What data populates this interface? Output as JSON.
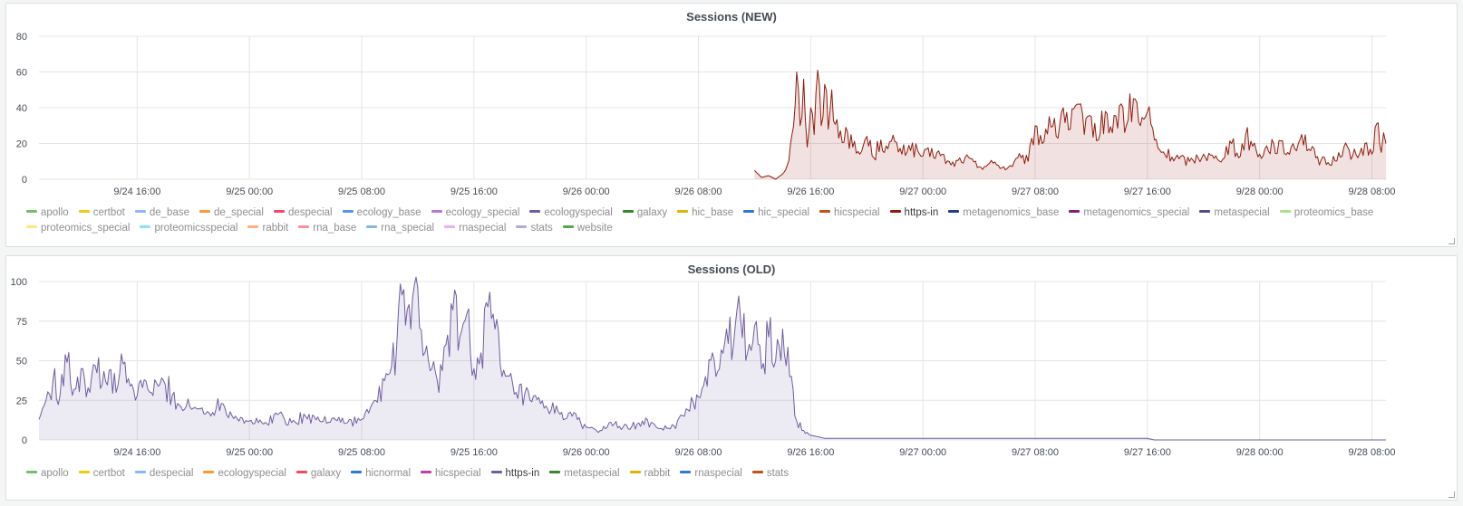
{
  "panels": [
    {
      "title": "Sessions (NEW)",
      "color": "#8f1b0c",
      "legend": [
        {
          "name": "apollo",
          "color": "#73bf69"
        },
        {
          "name": "certbot",
          "color": "#f2cc0c"
        },
        {
          "name": "de_base",
          "color": "#8ab8ff"
        },
        {
          "name": "de_special",
          "color": "#ff9830"
        },
        {
          "name": "despecial",
          "color": "#f2495c"
        },
        {
          "name": "ecology_base",
          "color": "#5794f2"
        },
        {
          "name": "ecology_special",
          "color": "#b877d9"
        },
        {
          "name": "ecologyspecial",
          "color": "#705da0"
        },
        {
          "name": "galaxy",
          "color": "#37872d"
        },
        {
          "name": "hic_base",
          "color": "#e0b400"
        },
        {
          "name": "hic_special",
          "color": "#3274d9"
        },
        {
          "name": "hicspecial",
          "color": "#c4501b"
        },
        {
          "name": "https-in",
          "color": "#8f1b0c",
          "active": true
        },
        {
          "name": "metagenomics_base",
          "color": "#1f3d8a"
        },
        {
          "name": "metagenomics_special",
          "color": "#7c1f7a"
        },
        {
          "name": "metaspecial",
          "color": "#5b4a8b"
        },
        {
          "name": "proteomics_base",
          "color": "#a7e091"
        },
        {
          "name": "proteomics_special",
          "color": "#ffe680"
        },
        {
          "name": "proteomicsspecial",
          "color": "#8be2f2"
        },
        {
          "name": "rabbit",
          "color": "#ffb07a"
        },
        {
          "name": "rna_base",
          "color": "#ff8e9b"
        },
        {
          "name": "rna_special",
          "color": "#8ab8d8"
        },
        {
          "name": "rnaspecial",
          "color": "#e3b3f0"
        },
        {
          "name": "stats",
          "color": "#b6a8d9"
        },
        {
          "name": "website",
          "color": "#56a64b"
        }
      ]
    },
    {
      "title": "Sessions (OLD)",
      "color": "#705da0",
      "legend": [
        {
          "name": "apollo",
          "color": "#73bf69"
        },
        {
          "name": "certbot",
          "color": "#f2cc0c"
        },
        {
          "name": "despecial",
          "color": "#8ab8ff"
        },
        {
          "name": "ecologyspecial",
          "color": "#ff9830"
        },
        {
          "name": "galaxy",
          "color": "#f2495c"
        },
        {
          "name": "hicnormal",
          "color": "#3274d9"
        },
        {
          "name": "hicspecial",
          "color": "#c13da8"
        },
        {
          "name": "https-in",
          "color": "#705da0",
          "active": true
        },
        {
          "name": "metaspecial",
          "color": "#37872d"
        },
        {
          "name": "rabbit",
          "color": "#e0b400"
        },
        {
          "name": "rnaspecial",
          "color": "#3274d9"
        },
        {
          "name": "stats",
          "color": "#c4501b"
        }
      ]
    }
  ],
  "chart_data": [
    {
      "type": "area",
      "title": "Sessions (NEW)",
      "x_ticks": [
        "9/24 16:00",
        "9/25 00:00",
        "9/25 08:00",
        "9/25 16:00",
        "9/26 00:00",
        "9/26 08:00",
        "9/26 16:00",
        "9/27 00:00",
        "9/27 08:00",
        "9/27 16:00",
        "9/28 00:00",
        "9/28 08:00"
      ],
      "y_ticks": [
        0,
        20,
        40,
        60,
        80
      ],
      "ylim": [
        0,
        80
      ],
      "xlim": [
        "9/24 09:00",
        "9/28 09:00"
      ],
      "series": [
        {
          "name": "https-in",
          "color": "#8f1b0c",
          "points": [
            [
              "9/26 12:00",
              5
            ],
            [
              "9/26 12:30",
              1
            ],
            [
              "9/26 13:00",
              2
            ],
            [
              "9/26 13:30",
              0
            ],
            [
              "9/26 14:00",
              3
            ],
            [
              "9/26 14:20",
              8
            ],
            [
              "9/26 14:40",
              25
            ],
            [
              "9/26 15:00",
              60
            ],
            [
              "9/26 15:15",
              30
            ],
            [
              "9/26 15:30",
              56
            ],
            [
              "9/26 15:45",
              18
            ],
            [
              "9/26 16:00",
              40
            ],
            [
              "9/26 16:15",
              25
            ],
            [
              "9/26 16:30",
              61
            ],
            [
              "9/26 16:45",
              30
            ],
            [
              "9/26 17:00",
              53
            ],
            [
              "9/26 17:15",
              28
            ],
            [
              "9/26 17:30",
              50
            ],
            [
              "9/26 18:00",
              23
            ],
            [
              "9/26 18:30",
              29
            ],
            [
              "9/26 19:00",
              18
            ],
            [
              "9/26 19:30",
              14
            ],
            [
              "9/26 20:00",
              24
            ],
            [
              "9/26 20:30",
              12
            ],
            [
              "9/26 21:00",
              22
            ],
            [
              "9/26 21:30",
              17
            ],
            [
              "9/26 22:00",
              21
            ],
            [
              "9/26 22:30",
              14
            ],
            [
              "9/26 23:00",
              19
            ],
            [
              "9/27 00:00",
              13
            ],
            [
              "9/27 01:00",
              15
            ],
            [
              "9/27 02:00",
              8
            ],
            [
              "9/27 03:00",
              12
            ],
            [
              "9/27 04:00",
              7
            ],
            [
              "9/27 05:00",
              9
            ],
            [
              "9/27 06:00",
              6
            ],
            [
              "9/27 07:00",
              12
            ],
            [
              "9/27 07:30",
              10
            ],
            [
              "9/27 08:00",
              30
            ],
            [
              "9/27 08:30",
              20
            ],
            [
              "9/27 09:00",
              35
            ],
            [
              "9/27 09:30",
              24
            ],
            [
              "9/27 10:00",
              40
            ],
            [
              "9/27 10:30",
              28
            ],
            [
              "9/27 11:00",
              42
            ],
            [
              "9/27 11:30",
              25
            ],
            [
              "9/27 12:00",
              35
            ],
            [
              "9/27 12:30",
              22
            ],
            [
              "9/27 13:00",
              38
            ],
            [
              "9/27 13:30",
              26
            ],
            [
              "9/27 14:00",
              41
            ],
            [
              "9/27 14:30",
              30
            ],
            [
              "9/27 15:00",
              45
            ],
            [
              "9/27 15:30",
              30
            ],
            [
              "9/27 16:00",
              38
            ],
            [
              "9/27 16:30",
              22
            ],
            [
              "9/27 17:00",
              15
            ],
            [
              "9/27 18:00",
              12
            ],
            [
              "9/27 19:00",
              10
            ],
            [
              "9/27 20:00",
              14
            ],
            [
              "9/27 21:00",
              11
            ],
            [
              "9/27 22:00",
              20
            ],
            [
              "9/27 22:30",
              12
            ],
            [
              "9/27 23:00",
              25
            ],
            [
              "9/28 00:00",
              14
            ],
            [
              "9/28 01:00",
              20
            ],
            [
              "9/28 02:00",
              15
            ],
            [
              "9/28 03:00",
              25
            ],
            [
              "9/28 04:00",
              12
            ],
            [
              "9/28 05:00",
              8
            ],
            [
              "9/28 06:00",
              18
            ],
            [
              "9/28 07:00",
              12
            ],
            [
              "9/28 07:30",
              20
            ],
            [
              "9/28 08:00",
              14
            ],
            [
              "9/28 08:20",
              31
            ],
            [
              "9/28 08:40",
              15
            ],
            [
              "9/28 08:50",
              26
            ],
            [
              "9/28 09:00",
              20
            ]
          ]
        }
      ]
    },
    {
      "type": "area",
      "title": "Sessions (OLD)",
      "x_ticks": [
        "9/24 16:00",
        "9/25 00:00",
        "9/25 08:00",
        "9/25 16:00",
        "9/26 00:00",
        "9/26 08:00",
        "9/26 16:00",
        "9/27 00:00",
        "9/27 08:00",
        "9/27 16:00",
        "9/28 00:00",
        "9/28 08:00"
      ],
      "y_ticks": [
        0,
        25,
        50,
        75,
        100
      ],
      "ylim": [
        0,
        100
      ],
      "xlim": [
        "9/24 09:00",
        "9/28 09:00"
      ],
      "series": [
        {
          "name": "https-in",
          "color": "#705da0",
          "points": [
            [
              "9/24 09:00",
              13
            ],
            [
              "9/24 09:30",
              25
            ],
            [
              "9/24 10:00",
              38
            ],
            [
              "9/24 10:30",
              28
            ],
            [
              "9/24 11:00",
              49
            ],
            [
              "9/24 11:30",
              32
            ],
            [
              "9/24 12:00",
              45
            ],
            [
              "9/24 12:30",
              33
            ],
            [
              "9/24 13:00",
              47
            ],
            [
              "9/24 13:30",
              35
            ],
            [
              "9/24 14:00",
              44
            ],
            [
              "9/24 14:30",
              30
            ],
            [
              "9/24 15:00",
              48
            ],
            [
              "9/24 15:30",
              34
            ],
            [
              "9/24 16:00",
              28
            ],
            [
              "9/24 16:30",
              38
            ],
            [
              "9/24 17:00",
              30
            ],
            [
              "9/24 18:00",
              35
            ],
            [
              "9/24 19:00",
              22
            ],
            [
              "9/24 20:00",
              20
            ],
            [
              "9/24 21:00",
              18
            ],
            [
              "9/24 22:00",
              23
            ],
            [
              "9/24 23:00",
              15
            ],
            [
              "9/25 00:00",
              12
            ],
            [
              "9/25 01:00",
              10
            ],
            [
              "9/25 02:00",
              16
            ],
            [
              "9/25 03:00",
              11
            ],
            [
              "9/25 04:00",
              15
            ],
            [
              "9/25 05:00",
              12
            ],
            [
              "9/25 06:00",
              14
            ],
            [
              "9/25 07:00",
              11
            ],
            [
              "9/25 08:00",
              13
            ],
            [
              "9/25 08:30",
              17
            ],
            [
              "9/25 09:00",
              25
            ],
            [
              "9/25 10:00",
              42
            ],
            [
              "9/25 10:30",
              60
            ],
            [
              "9/25 11:00",
              95
            ],
            [
              "9/25 11:30",
              70
            ],
            [
              "9/25 12:00",
              96
            ],
            [
              "9/25 12:30",
              55
            ],
            [
              "9/25 13:00",
              45
            ],
            [
              "9/25 13:30",
              30
            ],
            [
              "9/25 14:00",
              60
            ],
            [
              "9/25 14:30",
              82
            ],
            [
              "9/25 15:00",
              65
            ],
            [
              "9/25 15:30",
              80
            ],
            [
              "9/25 16:00",
              45
            ],
            [
              "9/25 16:30",
              55
            ],
            [
              "9/25 17:00",
              84
            ],
            [
              "9/25 17:30",
              70
            ],
            [
              "9/25 18:00",
              40
            ],
            [
              "9/25 19:00",
              30
            ],
            [
              "9/25 20:00",
              25
            ],
            [
              "9/25 21:00",
              20
            ],
            [
              "9/25 22:00",
              18
            ],
            [
              "9/25 23:00",
              15
            ],
            [
              "9/26 00:00",
              8
            ],
            [
              "9/26 01:00",
              6
            ],
            [
              "9/26 02:00",
              10
            ],
            [
              "9/26 03:00",
              7
            ],
            [
              "9/26 04:00",
              12
            ],
            [
              "9/26 05:00",
              8
            ],
            [
              "9/26 06:00",
              7
            ],
            [
              "9/26 07:00",
              15
            ],
            [
              "9/26 08:00",
              27
            ],
            [
              "9/26 08:30",
              40
            ],
            [
              "9/26 09:00",
              55
            ],
            [
              "9/26 09:30",
              45
            ],
            [
              "9/26 10:00",
              70
            ],
            [
              "9/26 10:30",
              60
            ],
            [
              "9/26 11:00",
              77
            ],
            [
              "9/26 11:30",
              55
            ],
            [
              "9/26 12:00",
              72
            ],
            [
              "9/26 12:30",
              45
            ],
            [
              "9/26 13:00",
              65
            ],
            [
              "9/26 13:30",
              50
            ],
            [
              "9/26 14:00",
              70
            ],
            [
              "9/26 14:30",
              40
            ],
            [
              "9/26 15:00",
              12
            ],
            [
              "9/26 15:30",
              6
            ],
            [
              "9/26 16:00",
              3
            ],
            [
              "9/26 17:00",
              1
            ],
            [
              "9/27 16:00",
              1
            ],
            [
              "9/27 16:30",
              0
            ],
            [
              "9/28 09:00",
              0
            ]
          ]
        }
      ]
    }
  ]
}
